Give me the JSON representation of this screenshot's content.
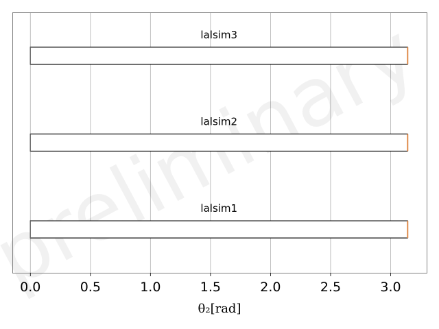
{
  "chart_data": {
    "type": "box",
    "orientation": "horizontal",
    "xlabel": "θ₂[rad]",
    "xlim": [
      -0.15,
      3.3
    ],
    "xticks": [
      "0.0",
      "0.5",
      "1.0",
      "1.5",
      "2.0",
      "2.5",
      "3.0"
    ],
    "grid": "vertical",
    "watermark": "preliminary",
    "series": [
      {
        "name": "lalsim3",
        "whisker_low": 0.0,
        "q1": 0.0,
        "median": 3.1416,
        "q3": 3.1416,
        "whisker_high": 3.1416
      },
      {
        "name": "lalsim2",
        "whisker_low": 0.0,
        "q1": 0.0,
        "median": 3.1416,
        "q3": 3.1416,
        "whisker_high": 3.1416
      },
      {
        "name": "lalsim1",
        "whisker_low": 0.0,
        "q1": 0.0,
        "median": 3.1416,
        "q3": 3.1416,
        "whisker_high": 3.1416
      }
    ],
    "colors": {
      "median": "#e08a4b",
      "box_edge": "#000000",
      "grid": "#b0b0b0",
      "axes": "#808080"
    }
  }
}
